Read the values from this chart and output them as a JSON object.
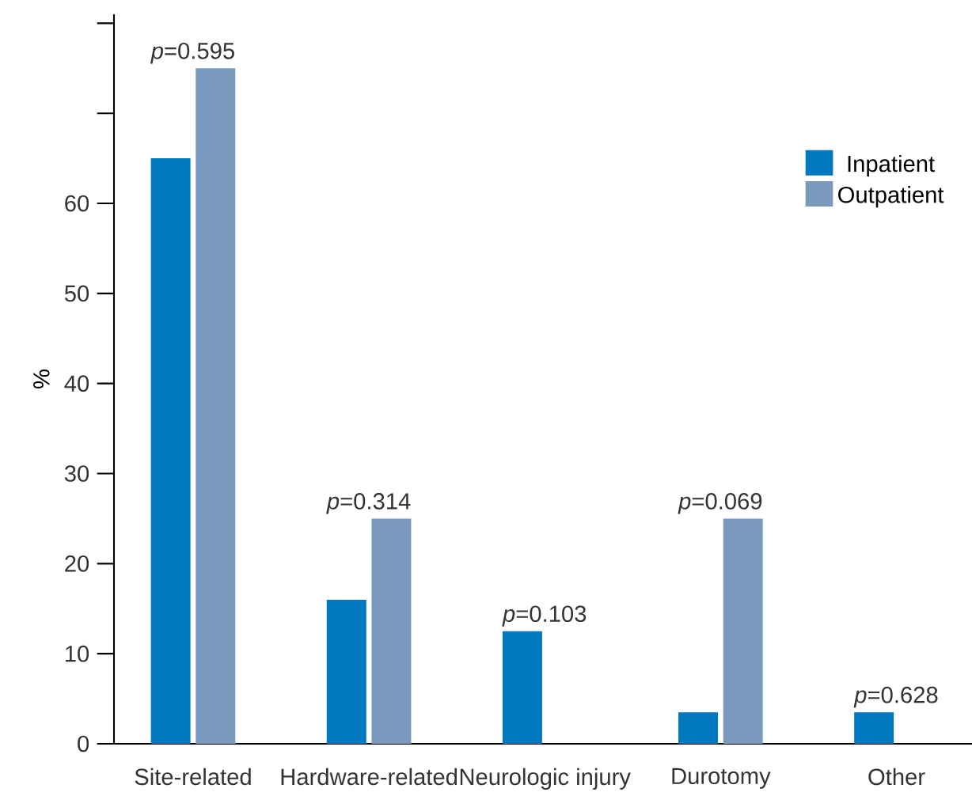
{
  "chart_data": {
    "type": "bar",
    "ylabel": "%",
    "categories": [
      "Site-related",
      "Hardware-related",
      "Neurologic injury",
      "Durotomy",
      "Other"
    ],
    "series": [
      {
        "name": "Inpatient",
        "color": "#0079c1",
        "values": [
          65,
          16,
          12.5,
          3.5,
          3.5
        ]
      },
      {
        "name": "Outpatient",
        "color": "#7b9abd",
        "values": [
          75,
          25,
          0,
          25,
          0
        ]
      }
    ],
    "ylim": [
      0,
      81
    ],
    "yticks": [
      0,
      10,
      20,
      30,
      40,
      50,
      60,
      {
        "value": 70,
        "label": null
      },
      {
        "value": 80,
        "label": null
      }
    ],
    "legend": "top right",
    "grid": false,
    "annotations": [
      {
        "text": "*p*=0.595",
        "x": "Site-related",
        "y": 75
      },
      {
        "text": "*p*=0.314",
        "x": "Hardware-related",
        "y": 25
      },
      {
        "text": "*p*=0.103",
        "x": "Neurologic injury",
        "y": 12.5
      },
      {
        "text": "*p*=0.069",
        "x": "Durotomy",
        "y": 25
      },
      {
        "text": "*p*=0.628",
        "x": "Other",
        "y": 3.5
      }
    ]
  }
}
